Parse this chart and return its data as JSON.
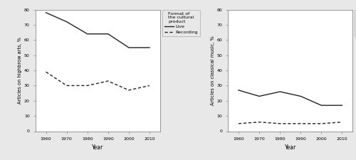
{
  "years": [
    1960,
    1970,
    1980,
    1990,
    2000,
    2010
  ],
  "left": {
    "live": [
      78,
      72,
      64,
      64,
      55,
      55
    ],
    "recording": [
      39,
      30,
      30,
      33,
      27,
      30
    ],
    "ylabel": "Articles on highbrow arts, %",
    "ylim": [
      0,
      80
    ],
    "yticks": [
      0,
      10,
      20,
      30,
      40,
      50,
      60,
      70,
      80
    ]
  },
  "right": {
    "live": [
      27,
      23,
      26,
      23,
      17,
      17
    ],
    "recording": [
      5,
      6,
      5,
      5,
      5,
      6
    ],
    "ylabel": "Articles on classical music, %",
    "ylim": [
      0,
      80
    ],
    "yticks": [
      0,
      10,
      20,
      30,
      40,
      50,
      60,
      70,
      80
    ]
  },
  "xlabel": "Year",
  "legend_title": "Format of\nthe cultural\nproduct",
  "legend_live": "Live",
  "legend_recording": "Recording",
  "line_color": "#222222",
  "bg_color": "#e8e8e8",
  "plot_bg": "#ffffff",
  "xticks": [
    1960,
    1970,
    1980,
    1990,
    2000,
    2010
  ],
  "ytick_labels_left": [
    "0",
    "10-",
    "20-",
    "30-",
    "40-",
    "50-",
    "60-",
    "70-",
    "80"
  ],
  "ytick_labels_right": [
    "0",
    "10-",
    "20-",
    "30-",
    "40-",
    "50-",
    "60-",
    "70-",
    "80"
  ]
}
